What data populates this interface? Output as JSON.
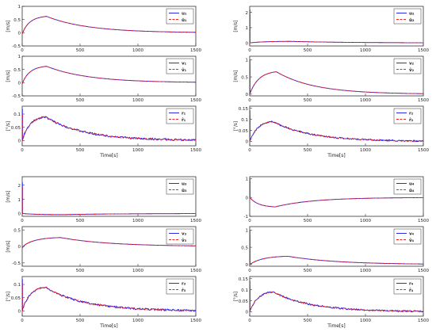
{
  "colors": {
    "estimated": "#1010ee",
    "true": "#ee2222",
    "frame": "#333333",
    "text": "#222222"
  },
  "chart_data": [
    {
      "id": "u1",
      "type": "line",
      "xlim": [
        0,
        1500
      ],
      "ylim": [
        -0.5,
        1
      ],
      "yticks": [
        "1",
        "0.5",
        "0",
        "-0.5"
      ],
      "xticks": [
        "0",
        "500",
        "1000",
        "1500"
      ],
      "ylabel": "[m/s]",
      "xlabel": "",
      "shape": "hump",
      "peak": 0.62,
      "tpeak": 210,
      "decay": 360,
      "start": -0.05,
      "noise": 0,
      "legend": [
        "u₁",
        "û₁"
      ]
    },
    {
      "id": "u2",
      "type": "line",
      "xlim": [
        0,
        1500
      ],
      "ylim": [
        -0.2,
        2.4
      ],
      "yticks": [
        "2",
        "1",
        "0"
      ],
      "xticks": [
        "0",
        "500",
        "1000",
        "1500"
      ],
      "ylabel": "[m/s]",
      "xlabel": "",
      "shape": "hump",
      "peak": 0.1,
      "tpeak": 350,
      "decay": 500,
      "start": 0,
      "noise": 0,
      "spike": 2.2,
      "legend": [
        "u₂",
        "û₂"
      ]
    },
    {
      "id": "v1",
      "type": "line",
      "xlim": [
        0,
        1500
      ],
      "ylim": [
        -0.5,
        1
      ],
      "yticks": [
        "1",
        "0.5",
        "0",
        "-0.5"
      ],
      "xticks": [
        "0",
        "500",
        "1000",
        "1500"
      ],
      "ylabel": "[m/s]",
      "xlabel": "",
      "shape": "hump",
      "peak": 0.62,
      "tpeak": 210,
      "decay": 360,
      "start": -0.05,
      "noise": 0,
      "legend": [
        "v₁",
        "v̂₁"
      ]
    },
    {
      "id": "v2",
      "type": "line",
      "xlim": [
        0,
        1500
      ],
      "ylim": [
        -0.05,
        1.1
      ],
      "yticks": [
        "1",
        "0.5",
        "0"
      ],
      "xticks": [
        "0",
        "500",
        "1000",
        "1500"
      ],
      "ylabel": "[m/s]",
      "xlabel": "",
      "shape": "hump",
      "peak": 0.65,
      "tpeak": 230,
      "decay": 330,
      "start": 0,
      "noise": 0,
      "spike": 1.0,
      "legend": [
        "v₂",
        "v̂₂"
      ]
    },
    {
      "id": "r1",
      "type": "line",
      "xlim": [
        0,
        1500
      ],
      "ylim": [
        -0.02,
        0.13
      ],
      "yticks": [
        "0.1",
        "0.05",
        "0"
      ],
      "xticks": [
        "0",
        "500",
        "1000",
        "1500"
      ],
      "ylabel": "[°/s]",
      "xlabel": "Time[s]",
      "shape": "hump",
      "peak": 0.09,
      "tpeak": 200,
      "decay": 330,
      "start": 0,
      "noise": 0.003,
      "spike": 0.12,
      "legend": [
        "r₁",
        "r̂₁"
      ]
    },
    {
      "id": "r2",
      "type": "line",
      "xlim": [
        0,
        1500
      ],
      "ylim": [
        -0.02,
        0.16
      ],
      "yticks": [
        "0.15",
        "0.1",
        "0.05",
        "0"
      ],
      "xticks": [
        "0",
        "500",
        "1000",
        "1500"
      ],
      "ylabel": "[°/s]",
      "xlabel": "Time[s]",
      "shape": "hump",
      "peak": 0.09,
      "tpeak": 200,
      "decay": 330,
      "start": 0,
      "noise": 0.003,
      "spike": 0.14,
      "legend": [
        "r₂",
        "r̂₂"
      ]
    },
    {
      "id": "u3",
      "type": "line",
      "xlim": [
        0,
        1500
      ],
      "ylim": [
        -0.2,
        2.6
      ],
      "yticks": [
        "2",
        "1",
        "0"
      ],
      "xticks": [
        "0",
        "500",
        "1000",
        "1500"
      ],
      "ylabel": "[m/s]",
      "xlabel": "",
      "shape": "hump",
      "peak": -0.08,
      "tpeak": 350,
      "decay": 500,
      "start": 0,
      "noise": 0,
      "spike": 2.2,
      "legend": [
        "u₃",
        "û₃"
      ]
    },
    {
      "id": "u4",
      "type": "line",
      "xlim": [
        0,
        1500
      ],
      "ylim": [
        -1,
        1.1
      ],
      "yticks": [
        "1",
        "0",
        "-1"
      ],
      "xticks": [
        "0",
        "500",
        "1000",
        "1500"
      ],
      "ylabel": "",
      "xlabel": "",
      "shape": "hump",
      "peak": -0.5,
      "tpeak": 220,
      "decay": 330,
      "start": 0,
      "noise": 0,
      "spike": 1.0,
      "legend": [
        "u₄",
        "û₄"
      ]
    },
    {
      "id": "v3",
      "type": "line",
      "xlim": [
        0,
        1500
      ],
      "ylim": [
        -0.6,
        0.6
      ],
      "yticks": [
        "0.5",
        "0",
        "-0.5"
      ],
      "xticks": [
        "0",
        "500",
        "1000",
        "1500"
      ],
      "ylabel": "[m/s]",
      "xlabel": "",
      "shape": "hump",
      "peak": 0.27,
      "tpeak": 330,
      "decay": 420,
      "start": -0.05,
      "noise": 0,
      "legend": [
        "v₃",
        "v̂₃"
      ]
    },
    {
      "id": "v4",
      "type": "line",
      "xlim": [
        0,
        1500
      ],
      "ylim": [
        -0.05,
        1.1
      ],
      "yticks": [
        "1",
        "0.5",
        "0"
      ],
      "xticks": [
        "0",
        "500",
        "1000",
        "1500"
      ],
      "ylabel": "",
      "xlabel": "",
      "shape": "hump",
      "peak": 0.24,
      "tpeak": 330,
      "decay": 420,
      "start": 0,
      "noise": 0,
      "spike": 1.0,
      "legend": [
        "v₄",
        "v̂₄"
      ]
    },
    {
      "id": "r3",
      "type": "line",
      "xlim": [
        0,
        1500
      ],
      "ylim": [
        -0.02,
        0.13
      ],
      "yticks": [
        "0.1",
        "0.05",
        "0"
      ],
      "xticks": [
        "0",
        "500",
        "1000",
        "1500"
      ],
      "ylabel": "[°/s]",
      "xlabel": "Time[s]",
      "shape": "hump",
      "peak": 0.09,
      "tpeak": 200,
      "decay": 330,
      "start": 0,
      "noise": 0.003,
      "spike": 0.12,
      "legend": [
        "r₃",
        "r̂₃"
      ]
    },
    {
      "id": "r4",
      "type": "line",
      "xlim": [
        0,
        1500
      ],
      "ylim": [
        -0.02,
        0.16
      ],
      "yticks": [
        "0.15",
        "0.1",
        "0.05",
        "0"
      ],
      "xticks": [
        "0",
        "500",
        "1000",
        "1500"
      ],
      "ylabel": "[°/s]",
      "xlabel": "Time[s]",
      "shape": "hump",
      "peak": 0.09,
      "tpeak": 200,
      "decay": 330,
      "start": 0,
      "noise": 0.003,
      "spike": 0.14,
      "legend": [
        "r₄",
        "r̂₄"
      ]
    }
  ]
}
